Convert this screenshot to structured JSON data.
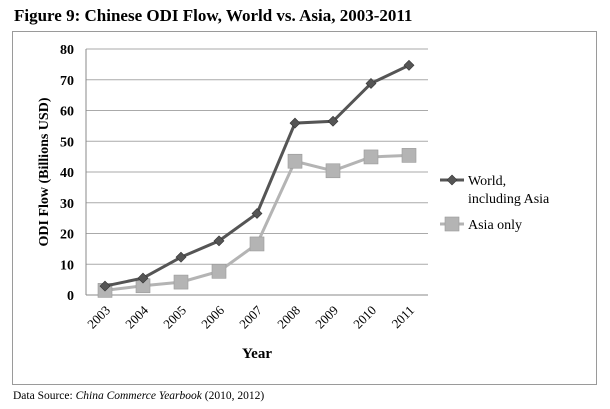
{
  "title": "Figure 9: Chinese ODI Flow, World vs. Asia, 2003-2011",
  "source": {
    "prefix": "Data Source: ",
    "italic": "China Commerce Yearbook",
    "suffix": " (2010, 2012)"
  },
  "chart_data": {
    "type": "line",
    "title": "Figure 9: Chinese ODI Flow, World vs. Asia, 2003-2011",
    "xlabel": "Year",
    "ylabel": "ODI Flow (Billions USD)",
    "categories": [
      "2003",
      "2004",
      "2005",
      "2006",
      "2007",
      "2008",
      "2009",
      "2010",
      "2011"
    ],
    "ylim": [
      0,
      80
    ],
    "yticks": [
      0,
      10,
      20,
      30,
      40,
      50,
      60,
      70,
      80
    ],
    "grid": true,
    "legend_position": "right",
    "series": [
      {
        "name": "World, including Asia",
        "legend_lines": [
          "World,",
          "including Asia"
        ],
        "marker": "diamond",
        "color": "#555555",
        "values": [
          2.9,
          5.5,
          12.3,
          17.6,
          26.5,
          55.9,
          56.5,
          68.8,
          74.7
        ]
      },
      {
        "name": "Asia only",
        "legend_lines": [
          "Asia only"
        ],
        "marker": "square",
        "color": "#b4b4b4",
        "values": [
          1.5,
          3.0,
          4.2,
          7.7,
          16.6,
          43.5,
          40.4,
          44.9,
          45.4
        ]
      }
    ]
  }
}
